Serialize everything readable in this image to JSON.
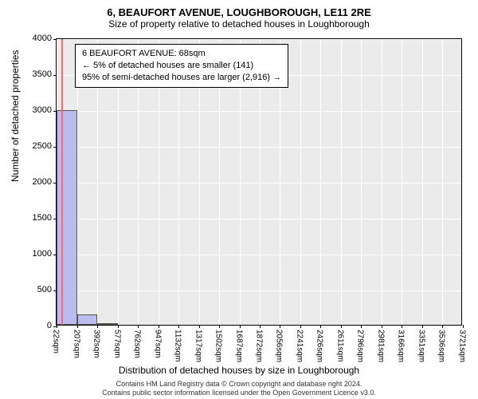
{
  "chart": {
    "type": "histogram",
    "title": "6, BEAUFORT AVENUE, LOUGHBOROUGH, LE11 2RE",
    "subtitle": "Size of property relative to detached houses in Loughborough",
    "ylabel": "Number of detached properties",
    "xlabel": "Distribution of detached houses by size in Loughborough",
    "ylim": [
      0,
      4000
    ],
    "ytick_step": 500,
    "yticks": [
      0,
      500,
      1000,
      1500,
      2000,
      2500,
      3000,
      3500,
      4000
    ],
    "xticks": [
      "22sqm",
      "207sqm",
      "392sqm",
      "577sqm",
      "762sqm",
      "947sqm",
      "1132sqm",
      "1317sqm",
      "1502sqm",
      "1687sqm",
      "1872sqm",
      "2056sqm",
      "2241sqm",
      "2426sqm",
      "2611sqm",
      "2796sqm",
      "2981sqm",
      "3166sqm",
      "3351sqm",
      "3536sqm",
      "3721sqm"
    ],
    "xtick_values": [
      22,
      207,
      392,
      577,
      762,
      947,
      1132,
      1317,
      1502,
      1687,
      1872,
      2056,
      2241,
      2426,
      2611,
      2796,
      2981,
      3166,
      3351,
      3536,
      3721
    ],
    "xlim": [
      22,
      3721
    ],
    "bars": [
      {
        "x0": 22,
        "x1": 207,
        "count": 2990
      },
      {
        "x0": 207,
        "x1": 392,
        "count": 140
      },
      {
        "x0": 392,
        "x1": 577,
        "count": 25
      }
    ],
    "marker": {
      "x": 68,
      "color": "#ff6666"
    },
    "callout": {
      "line1": "6 BEAUFORT AVENUE: 68sqm",
      "line2": "← 5% of detached houses are smaller (141)",
      "line3": "95% of semi-detached houses are larger (2,916) →"
    },
    "background_color": "#ebebeb",
    "grid_color": "#ffffff",
    "bar_color": "#bbbbf0",
    "bar_border": "#555555",
    "plot_border": "#000000"
  },
  "footer": {
    "line1": "Contains HM Land Registry data © Crown copyright and database right 2024.",
    "line2": "Contains public sector information licensed under the Open Government Licence v3.0."
  }
}
